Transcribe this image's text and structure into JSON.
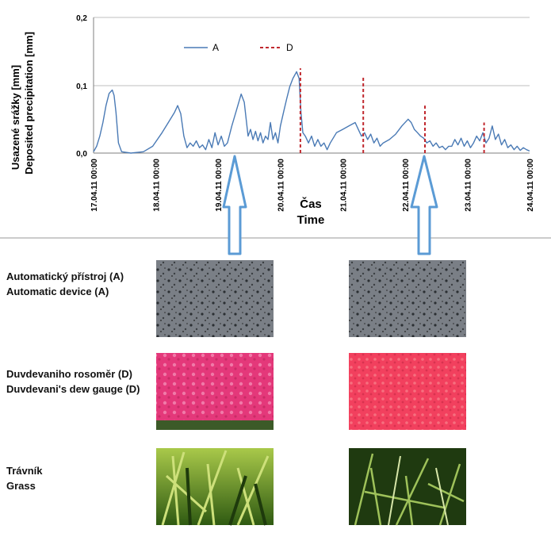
{
  "chart_data": {
    "type": "line",
    "ylabel_cz": "Usazené srážky [mm]",
    "ylabel_en": "Deposited precipitation [mm]",
    "xlabel_cz": "Čas",
    "xlabel_en": "Time",
    "ylim": [
      0,
      0.2
    ],
    "yticks": [
      "0,0",
      "0,1",
      "0,2"
    ],
    "xticks": [
      "17.04.11 00:00",
      "18.04.11 00:00",
      "19.04.11 00:00",
      "20.04.11 00:00",
      "21.04.11 00:00",
      "22.04.11 00:00",
      "23.04.11 00:00",
      "24.04.11 00:00"
    ],
    "xlim_days": [
      0,
      7
    ],
    "grid": true,
    "legend": "top-center",
    "series": [
      {
        "name": "A",
        "color": "#4a7ab5",
        "style": "solid",
        "points": [
          [
            0.0,
            0.002
          ],
          [
            0.05,
            0.01
          ],
          [
            0.1,
            0.025
          ],
          [
            0.15,
            0.045
          ],
          [
            0.2,
            0.07
          ],
          [
            0.25,
            0.088
          ],
          [
            0.3,
            0.093
          ],
          [
            0.33,
            0.085
          ],
          [
            0.36,
            0.06
          ],
          [
            0.4,
            0.015
          ],
          [
            0.45,
            0.002
          ],
          [
            0.6,
            0.0
          ],
          [
            0.8,
            0.002
          ],
          [
            0.95,
            0.01
          ],
          [
            1.1,
            0.03
          ],
          [
            1.2,
            0.045
          ],
          [
            1.3,
            0.06
          ],
          [
            1.35,
            0.07
          ],
          [
            1.4,
            0.058
          ],
          [
            1.45,
            0.025
          ],
          [
            1.5,
            0.008
          ],
          [
            1.55,
            0.015
          ],
          [
            1.6,
            0.01
          ],
          [
            1.65,
            0.018
          ],
          [
            1.7,
            0.008
          ],
          [
            1.75,
            0.012
          ],
          [
            1.8,
            0.005
          ],
          [
            1.85,
            0.02
          ],
          [
            1.9,
            0.008
          ],
          [
            1.95,
            0.03
          ],
          [
            2.0,
            0.012
          ],
          [
            2.05,
            0.025
          ],
          [
            2.1,
            0.01
          ],
          [
            2.15,
            0.015
          ],
          [
            2.22,
            0.04
          ],
          [
            2.3,
            0.065
          ],
          [
            2.37,
            0.087
          ],
          [
            2.42,
            0.075
          ],
          [
            2.48,
            0.025
          ],
          [
            2.52,
            0.035
          ],
          [
            2.56,
            0.02
          ],
          [
            2.6,
            0.032
          ],
          [
            2.64,
            0.018
          ],
          [
            2.68,
            0.03
          ],
          [
            2.72,
            0.015
          ],
          [
            2.76,
            0.025
          ],
          [
            2.8,
            0.02
          ],
          [
            2.84,
            0.045
          ],
          [
            2.88,
            0.02
          ],
          [
            2.92,
            0.03
          ],
          [
            2.96,
            0.015
          ],
          [
            3.0,
            0.04
          ],
          [
            3.05,
            0.06
          ],
          [
            3.1,
            0.08
          ],
          [
            3.15,
            0.098
          ],
          [
            3.2,
            0.11
          ],
          [
            3.26,
            0.12
          ],
          [
            3.3,
            0.11
          ],
          [
            3.33,
            0.06
          ],
          [
            3.36,
            0.03
          ],
          [
            3.4,
            0.025
          ],
          [
            3.45,
            0.015
          ],
          [
            3.5,
            0.025
          ],
          [
            3.55,
            0.01
          ],
          [
            3.6,
            0.02
          ],
          [
            3.65,
            0.01
          ],
          [
            3.7,
            0.015
          ],
          [
            3.75,
            0.005
          ],
          [
            3.8,
            0.015
          ],
          [
            3.9,
            0.03
          ],
          [
            4.0,
            0.035
          ],
          [
            4.1,
            0.04
          ],
          [
            4.2,
            0.045
          ],
          [
            4.25,
            0.035
          ],
          [
            4.3,
            0.025
          ],
          [
            4.35,
            0.03
          ],
          [
            4.4,
            0.02
          ],
          [
            4.45,
            0.028
          ],
          [
            4.5,
            0.015
          ],
          [
            4.55,
            0.022
          ],
          [
            4.6,
            0.01
          ],
          [
            4.65,
            0.015
          ],
          [
            4.75,
            0.02
          ],
          [
            4.85,
            0.028
          ],
          [
            4.95,
            0.04
          ],
          [
            5.05,
            0.05
          ],
          [
            5.1,
            0.045
          ],
          [
            5.15,
            0.035
          ],
          [
            5.2,
            0.03
          ],
          [
            5.25,
            0.025
          ],
          [
            5.3,
            0.022
          ],
          [
            5.35,
            0.015
          ],
          [
            5.4,
            0.018
          ],
          [
            5.45,
            0.01
          ],
          [
            5.5,
            0.015
          ],
          [
            5.55,
            0.008
          ],
          [
            5.6,
            0.01
          ],
          [
            5.65,
            0.005
          ],
          [
            5.7,
            0.01
          ],
          [
            5.75,
            0.01
          ],
          [
            5.8,
            0.02
          ],
          [
            5.85,
            0.012
          ],
          [
            5.9,
            0.022
          ],
          [
            5.95,
            0.01
          ],
          [
            6.0,
            0.018
          ],
          [
            6.05,
            0.008
          ],
          [
            6.1,
            0.015
          ],
          [
            6.15,
            0.025
          ],
          [
            6.2,
            0.018
          ],
          [
            6.25,
            0.03
          ],
          [
            6.3,
            0.015
          ],
          [
            6.35,
            0.022
          ],
          [
            6.4,
            0.04
          ],
          [
            6.45,
            0.02
          ],
          [
            6.5,
            0.028
          ],
          [
            6.55,
            0.012
          ],
          [
            6.6,
            0.02
          ],
          [
            6.65,
            0.008
          ],
          [
            6.7,
            0.012
          ],
          [
            6.75,
            0.005
          ],
          [
            6.8,
            0.01
          ],
          [
            6.85,
            0.004
          ],
          [
            6.9,
            0.008
          ],
          [
            6.95,
            0.005
          ],
          [
            7.0,
            0.003
          ]
        ]
      },
      {
        "name": "D",
        "color": "#c0282e",
        "style": "dashed",
        "points": [
          [
            3.32,
            0.0
          ],
          [
            3.32,
            0.125
          ],
          null,
          [
            4.33,
            0.0
          ],
          [
            4.33,
            0.113
          ],
          null,
          [
            5.32,
            0.0
          ],
          [
            5.32,
            0.07
          ],
          null,
          [
            6.27,
            0.0
          ],
          [
            6.27,
            0.045
          ]
        ]
      }
    ]
  },
  "legend_labels": {
    "a": "A",
    "d": "D"
  },
  "rows": [
    {
      "cz": "Automatický přístroj (A)",
      "en": "Automatic device (A)"
    },
    {
      "cz": "Duvdevaniho rosoměr (D)",
      "en": "Duvdevani's dew gauge (D)"
    },
    {
      "cz": "Trávník",
      "en": "Grass"
    }
  ]
}
